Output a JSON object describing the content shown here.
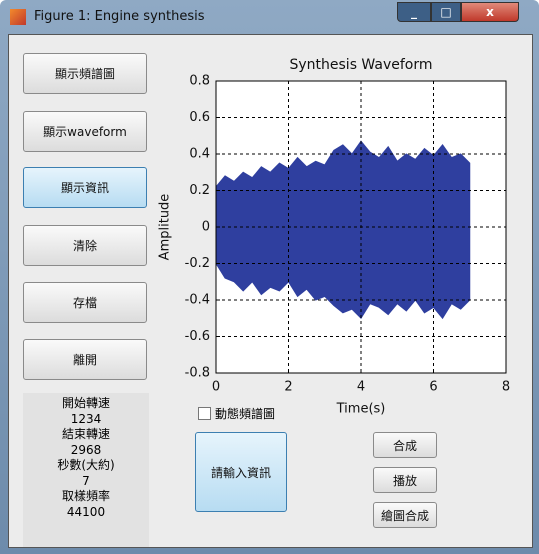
{
  "window": {
    "title": "Figure 1: Engine synthesis"
  },
  "buttons": [
    "顯示頻譜圖",
    "顯示waveform",
    "顯示資訊",
    "清除",
    "存檔",
    "離開"
  ],
  "info": [
    "開始轉速",
    "1234",
    "結束轉速",
    "2968",
    "秒數(大約)",
    "7",
    "取樣頻率",
    "44100"
  ],
  "checkbox": {
    "label": "動態頻譜圖"
  },
  "input_button": "請輸入資訊",
  "action_buttons": [
    "合成",
    "播放",
    "繪圖合成"
  ],
  "chart_data": {
    "type": "band",
    "title": "Synthesis Waveform",
    "x_label": "Time(s)",
    "y_label": "Amplitude",
    "x": [
      0,
      0.25,
      0.5,
      0.75,
      1,
      1.25,
      1.5,
      1.75,
      2,
      2.25,
      2.5,
      2.75,
      3,
      3.25,
      3.5,
      3.75,
      4,
      4.25,
      4.5,
      4.75,
      5,
      5.25,
      5.5,
      5.75,
      6,
      6.25,
      6.5,
      6.75,
      7
    ],
    "series": [
      {
        "color": "#2f3f9f",
        "values": [
          0.22,
          0.28,
          0.25,
          0.3,
          0.27,
          0.33,
          0.3,
          0.35,
          0.32,
          0.38,
          0.33,
          0.36,
          0.34,
          0.42,
          0.45,
          0.4,
          0.47,
          0.41,
          0.38,
          0.44,
          0.36,
          0.4,
          0.37,
          0.43,
          0.39,
          0.45,
          0.38,
          0.4,
          0.35
        ]
      },
      {
        "color": "#2f3f9f",
        "values": [
          -0.2,
          -0.28,
          -0.3,
          -0.35,
          -0.3,
          -0.37,
          -0.33,
          -0.35,
          -0.3,
          -0.38,
          -0.34,
          -0.4,
          -0.38,
          -0.43,
          -0.47,
          -0.45,
          -0.5,
          -0.42,
          -0.44,
          -0.48,
          -0.42,
          -0.46,
          -0.4,
          -0.47,
          -0.44,
          -0.5,
          -0.42,
          -0.45,
          -0.4
        ]
      }
    ],
    "xlim": [
      0,
      8
    ],
    "xticks": [
      0,
      2,
      4,
      6,
      8
    ],
    "ylim": [
      -0.8,
      0.8
    ],
    "yticks": [
      -0.8,
      -0.6,
      -0.4,
      -0.2,
      0,
      0.2,
      0.4,
      0.6,
      0.8
    ],
    "grid": true
  }
}
